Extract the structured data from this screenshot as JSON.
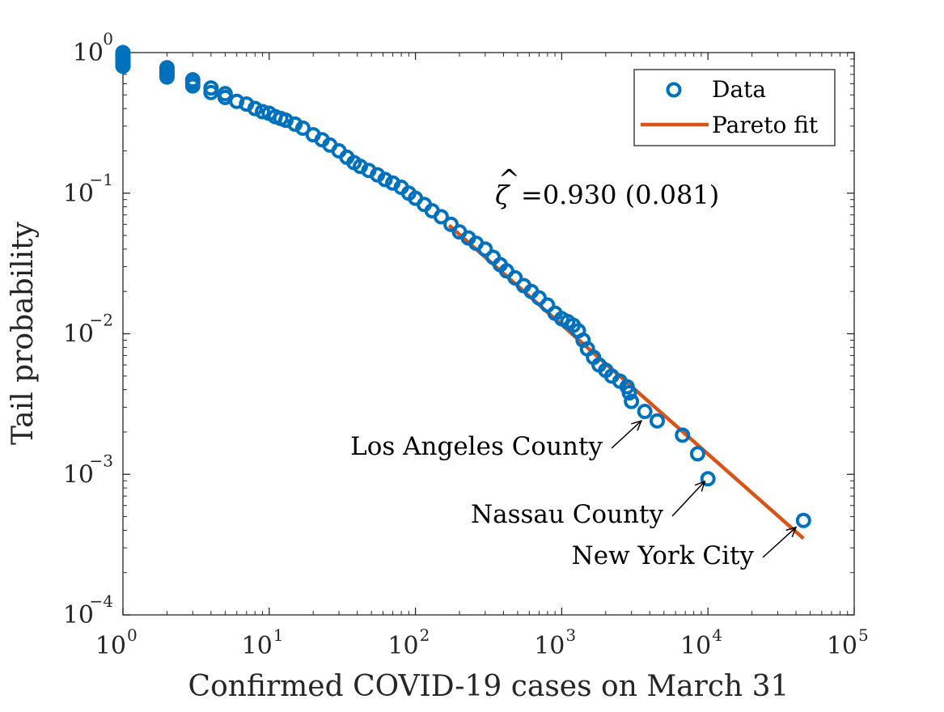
{
  "chart_data": {
    "type": "scatter",
    "xscale": "log",
    "yscale": "log",
    "xlim": [
      1,
      100000
    ],
    "ylim": [
      0.0001,
      1
    ],
    "grid": false,
    "box": true,
    "legend_position": "top-right",
    "xlabel": "Confirmed COVID-19 cases on March 31",
    "ylabel": "Tail probability",
    "x_ticks": [
      {
        "value": 1,
        "base": "10",
        "exp": "0"
      },
      {
        "value": 10,
        "base": "10",
        "exp": "1"
      },
      {
        "value": 100,
        "base": "10",
        "exp": "2"
      },
      {
        "value": 1000,
        "base": "10",
        "exp": "3"
      },
      {
        "value": 10000,
        "base": "10",
        "exp": "4"
      },
      {
        "value": 100000,
        "base": "10",
        "exp": "5"
      }
    ],
    "y_ticks": [
      {
        "value": 1,
        "base": "10",
        "exp": "0"
      },
      {
        "value": 0.1,
        "base": "10",
        "exp": "−1"
      },
      {
        "value": 0.01,
        "base": "10",
        "exp": "−2"
      },
      {
        "value": 0.001,
        "base": "10",
        "exp": "−3"
      },
      {
        "value": 0.0001,
        "base": "10",
        "exp": "−4"
      }
    ],
    "series": [
      {
        "name": "Data",
        "marker": "circle-open",
        "color": "#0072BD",
        "points": [
          [
            1,
            1.0
          ],
          [
            1,
            0.97
          ],
          [
            1,
            0.94
          ],
          [
            1,
            0.91
          ],
          [
            1,
            0.88
          ],
          [
            1,
            0.85
          ],
          [
            1,
            0.82
          ],
          [
            1,
            0.8
          ],
          [
            2,
            0.78
          ],
          [
            2,
            0.75
          ],
          [
            2,
            0.72
          ],
          [
            2,
            0.69
          ],
          [
            2,
            0.67
          ],
          [
            3,
            0.64
          ],
          [
            3,
            0.61
          ],
          [
            3,
            0.58
          ],
          [
            4,
            0.56
          ],
          [
            4,
            0.52
          ],
          [
            5,
            0.51
          ],
          [
            5,
            0.48
          ],
          [
            6,
            0.45
          ],
          [
            7,
            0.43
          ],
          [
            8,
            0.4
          ],
          [
            9,
            0.38
          ],
          [
            10,
            0.37
          ],
          [
            11,
            0.35
          ],
          [
            12,
            0.34
          ],
          [
            13,
            0.33
          ],
          [
            15,
            0.31
          ],
          [
            17,
            0.29
          ],
          [
            20,
            0.26
          ],
          [
            23,
            0.24
          ],
          [
            26,
            0.22
          ],
          [
            30,
            0.2
          ],
          [
            34,
            0.18
          ],
          [
            38,
            0.165
          ],
          [
            42,
            0.155
          ],
          [
            48,
            0.145
          ],
          [
            55,
            0.135
          ],
          [
            62,
            0.125
          ],
          [
            70,
            0.118
          ],
          [
            80,
            0.11
          ],
          [
            90,
            0.1
          ],
          [
            100,
            0.092
          ],
          [
            115,
            0.083
          ],
          [
            130,
            0.075
          ],
          [
            150,
            0.068
          ],
          [
            175,
            0.06
          ],
          [
            200,
            0.053
          ],
          [
            230,
            0.048
          ],
          [
            260,
            0.044
          ],
          [
            300,
            0.04
          ],
          [
            340,
            0.035
          ],
          [
            380,
            0.031
          ],
          [
            420,
            0.028
          ],
          [
            480,
            0.025
          ],
          [
            550,
            0.022
          ],
          [
            620,
            0.02
          ],
          [
            700,
            0.018
          ],
          [
            800,
            0.016
          ],
          [
            900,
            0.014
          ],
          [
            1000,
            0.0128
          ],
          [
            1100,
            0.0122
          ],
          [
            1200,
            0.0115
          ],
          [
            1300,
            0.0105
          ],
          [
            1400,
            0.009
          ],
          [
            1500,
            0.0078
          ],
          [
            1650,
            0.0068
          ],
          [
            1800,
            0.006
          ],
          [
            2000,
            0.0055
          ],
          [
            2200,
            0.005
          ],
          [
            2500,
            0.0046
          ],
          [
            2800,
            0.0042
          ],
          [
            2900,
            0.0038
          ],
          [
            3000,
            0.0033
          ],
          [
            3700,
            0.0028
          ],
          [
            4500,
            0.0024
          ],
          [
            6700,
            0.0019
          ],
          [
            8500,
            0.0014
          ],
          [
            10000,
            0.00093
          ],
          [
            45000,
            0.00047
          ]
        ]
      },
      {
        "name": "Pareto fit",
        "marker": "line",
        "color": "#D95319",
        "points": [
          [
            170,
            0.059
          ],
          [
            45000,
            0.00035
          ]
        ]
      }
    ],
    "annotations": [
      {
        "text": "Los Angeles County",
        "target": [
          3500,
          0.0024
        ]
      },
      {
        "text": "Nassau County",
        "target": [
          9500,
          0.00089
        ]
      },
      {
        "text": "New York City",
        "target": [
          40000,
          0.00042
        ]
      }
    ],
    "fit_stat": {
      "symbol": "ζ",
      "text": "=0.930 (0.081)"
    }
  }
}
